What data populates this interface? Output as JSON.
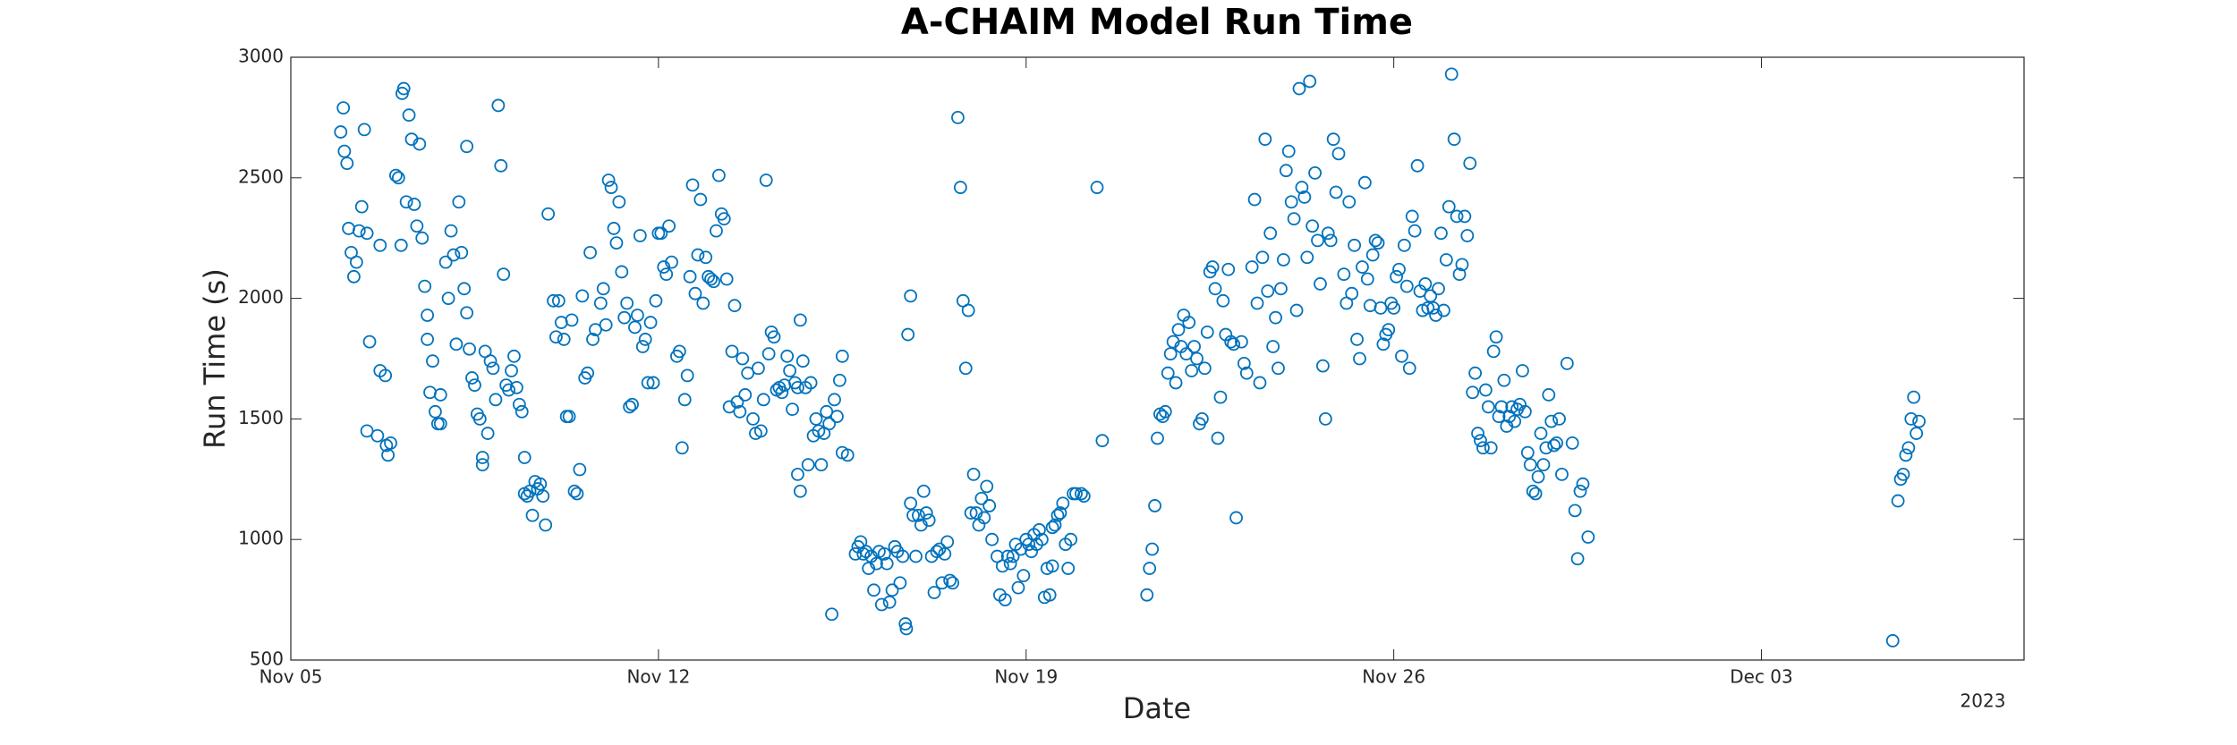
{
  "chart_data": {
    "type": "scatter",
    "title": "A-CHAIM Model Run Time",
    "xlabel": "Date",
    "ylabel": "Run Time (s)",
    "x_secondary_label": "2023",
    "color": "#0072bd",
    "marker": "circle",
    "grid": false,
    "xlim": [
      0,
      33
    ],
    "xticks": [
      {
        "value": 0,
        "label": "Nov 05"
      },
      {
        "value": 7,
        "label": "Nov 12"
      },
      {
        "value": 14,
        "label": "Nov 19"
      },
      {
        "value": 21,
        "label": "Nov 26"
      },
      {
        "value": 28,
        "label": "Dec 03"
      }
    ],
    "ylim": [
      500,
      3000
    ],
    "yticks": [
      500,
      1000,
      1500,
      2000,
      2500,
      3000
    ],
    "x": [
      0.95,
      1.0,
      1.02,
      1.07,
      1.1,
      1.15,
      1.2,
      1.25,
      1.3,
      1.35,
      1.4,
      1.45,
      1.5,
      1.45,
      1.65,
      1.7,
      1.8,
      1.82,
      1.85,
      1.9,
      1.7,
      2.0,
      2.05,
      2.1,
      2.12,
      2.15,
      2.2,
      2.25,
      2.3,
      2.35,
      2.4,
      2.45,
      2.5,
      2.55,
      2.6,
      2.6,
      2.65,
      2.7,
      2.75,
      2.8,
      2.85,
      2.85,
      2.95,
      3.0,
      3.05,
      3.1,
      3.15,
      3.2,
      3.25,
      3.3,
      3.35,
      3.35,
      3.4,
      3.45,
      3.5,
      3.55,
      3.6,
      3.65,
      3.65,
      3.7,
      3.75,
      3.8,
      3.85,
      3.9,
      3.95,
      4.0,
      4.05,
      4.1,
      4.15,
      4.2,
      4.25,
      4.3,
      4.35,
      4.4,
      4.45,
      4.45,
      4.5,
      4.55,
      4.6,
      4.65,
      4.7,
      4.75,
      4.8,
      4.85,
      4.9,
      5.0,
      5.05,
      5.1,
      5.15,
      5.2,
      5.25,
      5.3,
      5.35,
      5.4,
      5.45,
      5.5,
      5.55,
      5.6,
      5.65,
      5.7,
      5.75,
      5.8,
      5.9,
      5.95,
      6.0,
      6.05,
      6.1,
      6.15,
      6.2,
      6.25,
      6.3,
      6.35,
      6.4,
      6.45,
      6.5,
      6.55,
      6.6,
      6.65,
      6.7,
      6.75,
      6.8,
      6.85,
      6.9,
      6.95,
      7.0,
      7.05,
      7.1,
      7.15,
      7.2,
      7.25,
      7.35,
      7.4,
      7.45,
      7.5,
      7.55,
      7.6,
      7.65,
      7.7,
      7.75,
      7.8,
      7.85,
      7.9,
      7.95,
      8.0,
      8.05,
      8.1,
      8.15,
      8.2,
      8.25,
      8.3,
      8.35,
      8.4,
      8.45,
      8.5,
      8.55,
      8.6,
      8.65,
      8.7,
      8.8,
      8.85,
      8.9,
      8.95,
      9.0,
      9.05,
      9.1,
      9.15,
      9.2,
      9.25,
      9.3,
      9.35,
      9.4,
      9.45,
      9.5,
      9.55,
      9.6,
      9.65,
      9.7,
      9.75,
      9.8,
      9.9,
      9.65,
      9.7,
      9.85,
      9.95,
      10.0,
      10.05,
      10.1,
      10.15,
      10.2,
      10.25,
      10.3,
      10.35,
      10.4,
      10.45,
      10.5,
      10.5,
      10.6,
      10.75,
      10.8,
      10.85,
      10.9,
      10.95,
      11.0,
      11.05,
      11.1,
      11.15,
      11.2,
      11.25,
      11.3,
      11.35,
      11.4,
      11.45,
      11.5,
      11.55,
      11.6,
      11.65,
      11.7,
      11.72,
      11.75,
      11.8,
      11.8,
      11.85,
      11.9,
      11.95,
      12.0,
      12.05,
      12.1,
      12.15,
      12.2,
      12.25,
      12.3,
      12.35,
      12.4,
      12.45,
      12.5,
      12.55,
      12.6,
      12.7,
      12.75,
      12.8,
      12.85,
      12.9,
      12.95,
      13.0,
      13.05,
      13.1,
      13.15,
      13.2,
      13.25,
      13.3,
      13.35,
      13.45,
      13.5,
      13.55,
      13.6,
      13.65,
      13.7,
      13.75,
      13.8,
      13.85,
      13.9,
      13.95,
      14.0,
      14.05,
      14.1,
      14.15,
      14.2,
      14.25,
      14.3,
      14.35,
      14.4,
      14.45,
      14.5,
      14.5,
      14.55,
      14.6,
      14.65,
      14.7,
      14.75,
      14.8,
      14.85,
      14.9,
      14.95,
      15.05,
      15.1,
      15.35,
      15.45,
      16.3,
      16.35,
      16.4,
      16.45,
      16.5,
      16.55,
      16.6,
      16.65,
      16.7,
      16.75,
      16.8,
      16.85,
      16.9,
      16.95,
      17.0,
      17.05,
      17.1,
      17.15,
      17.2,
      17.25,
      17.3,
      17.35,
      17.4,
      17.45,
      17.5,
      17.55,
      17.6,
      17.65,
      17.7,
      17.75,
      17.8,
      17.85,
      17.9,
      17.95,
      18.0,
      18.1,
      18.15,
      18.2,
      18.3,
      18.35,
      18.4,
      18.45,
      18.5,
      18.55,
      18.6,
      18.65,
      18.7,
      18.75,
      18.8,
      18.85,
      18.9,
      18.95,
      19.0,
      19.05,
      19.1,
      19.15,
      19.2,
      19.25,
      19.3,
      19.35,
      19.4,
      19.45,
      19.5,
      19.55,
      19.6,
      19.65,
      19.7,
      19.75,
      19.8,
      19.85,
      19.9,
      19.95,
      20.05,
      20.1,
      20.15,
      20.2,
      20.25,
      20.3,
      20.35,
      20.4,
      20.45,
      20.5,
      20.55,
      20.6,
      20.65,
      20.7,
      20.75,
      20.8,
      20.85,
      20.9,
      20.95,
      21.0,
      21.05,
      21.1,
      21.15,
      21.2,
      21.25,
      21.3,
      21.35,
      21.4,
      21.45,
      21.5,
      21.55,
      21.6,
      21.65,
      21.7,
      21.75,
      21.8,
      21.85,
      21.9,
      21.95,
      22.0,
      22.05,
      22.1,
      22.15,
      22.2,
      22.25,
      22.3,
      22.35,
      22.4,
      22.45,
      22.5,
      22.55,
      22.6,
      22.65,
      22.7,
      22.75,
      22.8,
      22.85,
      22.9,
      22.95,
      23.0,
      23.05,
      23.1,
      23.15,
      23.2,
      23.25,
      23.3,
      23.35,
      23.4,
      23.45,
      23.5,
      23.55,
      23.6,
      23.65,
      23.7,
      23.75,
      23.8,
      23.85,
      23.9,
      23.95,
      24.0,
      24.05,
      24.1,
      24.15,
      24.2,
      24.3,
      24.4,
      24.45,
      24.5,
      24.55,
      24.6,
      24.7,
      30.5,
      30.6,
      30.65,
      30.7,
      30.75,
      30.8,
      30.85,
      30.9,
      30.95,
      31.0
    ],
    "values": [
      2690,
      2790,
      2610,
      2560,
      2290,
      2190,
      2090,
      2150,
      2280,
      2380,
      2700,
      2270,
      1820,
      1450,
      1430,
      1700,
      1680,
      1390,
      1350,
      1400,
      2220,
      2510,
      2500,
      2220,
      2850,
      2870,
      2400,
      2760,
      2660,
      2390,
      2300,
      2640,
      2250,
      2050,
      1930,
      1830,
      1610,
      1740,
      1530,
      1480,
      1600,
      1480,
      2150,
      2000,
      2280,
      2180,
      1810,
      2400,
      2190,
      2040,
      2630,
      1940,
      1790,
      1670,
      1640,
      1520,
      1500,
      1310,
      1340,
      1780,
      1440,
      1740,
      1710,
      1580,
      2800,
      2550,
      2100,
      1640,
      1620,
      1700,
      1760,
      1630,
      1560,
      1530,
      1340,
      1190,
      1180,
      1200,
      1100,
      1240,
      1210,
      1230,
      1180,
      1060,
      2350,
      1990,
      1840,
      1990,
      1900,
      1830,
      1510,
      1510,
      1910,
      1200,
      1190,
      1290,
      2010,
      1670,
      1690,
      2190,
      1830,
      1870,
      1980,
      2040,
      1890,
      2490,
      2460,
      2290,
      2230,
      2400,
      2110,
      1920,
      1980,
      1550,
      1560,
      1880,
      1930,
      2260,
      1800,
      1830,
      1650,
      1900,
      1650,
      1990,
      2270,
      2270,
      2130,
      2100,
      2300,
      2150,
      1760,
      1780,
      1380,
      1580,
      1680,
      2090,
      2470,
      2020,
      2180,
      2410,
      1980,
      2170,
      2090,
      2080,
      2070,
      2280,
      2510,
      2350,
      2330,
      2080,
      1550,
      1780,
      1970,
      1570,
      1530,
      1750,
      1600,
      1690,
      1500,
      1440,
      1710,
      1450,
      1580,
      2490,
      1770,
      1860,
      1840,
      1620,
      1630,
      1610,
      1640,
      1760,
      1700,
      1540,
      1650,
      1630,
      1910,
      1740,
      1630,
      1650,
      1270,
      1200,
      1310,
      1430,
      1500,
      1450,
      1310,
      1440,
      1530,
      1480,
      690,
      1580,
      1510,
      1660,
      1760,
      1360,
      1350,
      940,
      970,
      990,
      940,
      950,
      880,
      930,
      790,
      900,
      950,
      730,
      940,
      900,
      740,
      790,
      970,
      950,
      820,
      930,
      650,
      630,
      1850,
      2010,
      1150,
      1100,
      930,
      1100,
      1060,
      1200,
      1110,
      1080,
      930,
      780,
      950,
      960,
      820,
      940,
      990,
      830,
      820,
      2750,
      2460,
      1990,
      1710,
      1950,
      1110,
      1270,
      1110,
      1060,
      1170,
      1090,
      1220,
      1140,
      1000,
      930,
      770,
      890,
      750,
      930,
      900,
      930,
      980,
      800,
      960,
      850,
      1000,
      980,
      950,
      1020,
      980,
      1040,
      1000,
      760,
      880,
      770,
      890,
      1050,
      1060,
      1100,
      1110,
      1150,
      980,
      880,
      1000,
      1190,
      1190,
      1190,
      1180,
      2460,
      1410,
      770,
      880,
      960,
      1140,
      1420,
      1520,
      1510,
      1530,
      1690,
      1770,
      1820,
      1650,
      1870,
      1800,
      1930,
      1770,
      1900,
      1700,
      1800,
      1750,
      1480,
      1500,
      1710,
      1860,
      2110,
      2130,
      2040,
      1420,
      1590,
      1990,
      1850,
      2120,
      1820,
      1810,
      1090,
      1820,
      1730,
      1690,
      2130,
      2410,
      1980,
      1650,
      2170,
      2660,
      2030,
      2270,
      1800,
      1920,
      1710,
      2040,
      2160,
      2530,
      2610,
      2400,
      2330,
      1950,
      2870,
      2460,
      2420,
      2170,
      2900,
      2300,
      2520,
      2240,
      2060,
      1720,
      1500,
      2270,
      2240,
      2660,
      2440,
      2600,
      2100,
      1980,
      2400,
      2020,
      2220,
      1830,
      1750,
      2130,
      2480,
      2080,
      1970,
      2180,
      2240,
      2230,
      1960,
      1810,
      1850,
      1870,
      1980,
      1960,
      2090,
      2120,
      1760,
      2220,
      2050,
      1710,
      2340,
      2280,
      2550,
      2030,
      1950,
      2060,
      1960,
      2010,
      1960,
      1930,
      2040,
      2270,
      1950,
      2160,
      2380,
      2930,
      2660,
      2340,
      2100,
      2140,
      2340,
      2260,
      2560,
      1610,
      1690,
      1440,
      1410,
      1380,
      1620,
      1550,
      1380,
      1780,
      1840,
      1510,
      1550,
      1660,
      1470,
      1510,
      1550,
      1490,
      1540,
      1560,
      1700,
      1530,
      1360,
      1310,
      1200,
      1190,
      1260,
      1440,
      1310,
      1380,
      1600,
      1490,
      1390,
      1400,
      1500,
      1270,
      1730,
      1400,
      1120,
      920,
      1200,
      1230,
      1010,
      580,
      1160,
      1250,
      1270,
      1350,
      1380,
      1500,
      1590,
      1440,
      1490
    ]
  }
}
